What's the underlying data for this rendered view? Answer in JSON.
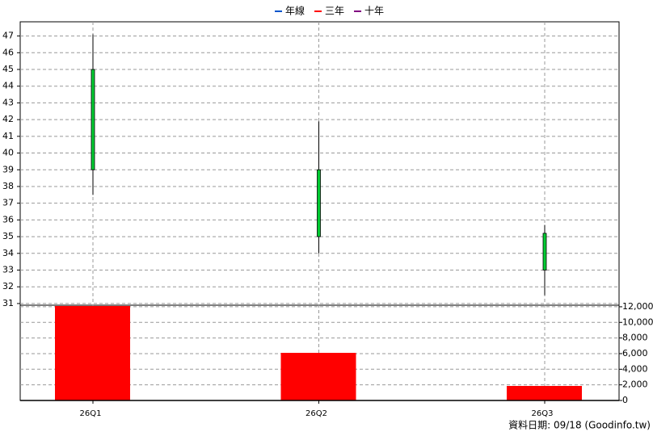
{
  "chart_data": {
    "type": "candlestick",
    "legend": [
      {
        "name": "年線",
        "color": "#0055cc"
      },
      {
        "name": "三年",
        "color": "#ff0000"
      },
      {
        "name": "十年",
        "color": "#800080"
      }
    ],
    "categories": [
      "26Q1",
      "26Q2",
      "26Q3"
    ],
    "open": [
      45,
      39,
      35.2
    ],
    "high": [
      47.1,
      41.9,
      35.7
    ],
    "low": [
      37.5,
      34.0,
      31.5
    ],
    "close": [
      39,
      35,
      33.0
    ],
    "color": "#00cc33",
    "ylim": [
      30.9,
      47.85
    ],
    "yticks": [
      31,
      32,
      33,
      34,
      35,
      36,
      37,
      38,
      39,
      40,
      41,
      42,
      43,
      44,
      45,
      46,
      47
    ],
    "volume": {
      "values": [
        12100,
        6100,
        1860
      ],
      "color": "#ff0000",
      "axis": "y2"
    },
    "y2lim": [
      0,
      12200
    ],
    "y2ticks": [
      0,
      {
        "value": 2000,
        "label": "2,000"
      },
      {
        "value": 4000,
        "label": "4,000"
      },
      {
        "value": 6000,
        "label": "6,000"
      },
      {
        "value": 8000,
        "label": "8,000"
      },
      {
        "value": 10000,
        "label": "10,000"
      },
      {
        "value": 12000,
        "label": "12,000"
      }
    ],
    "grid": true,
    "source": "資料日期: 09/18  (Goodinfo.tw)"
  }
}
